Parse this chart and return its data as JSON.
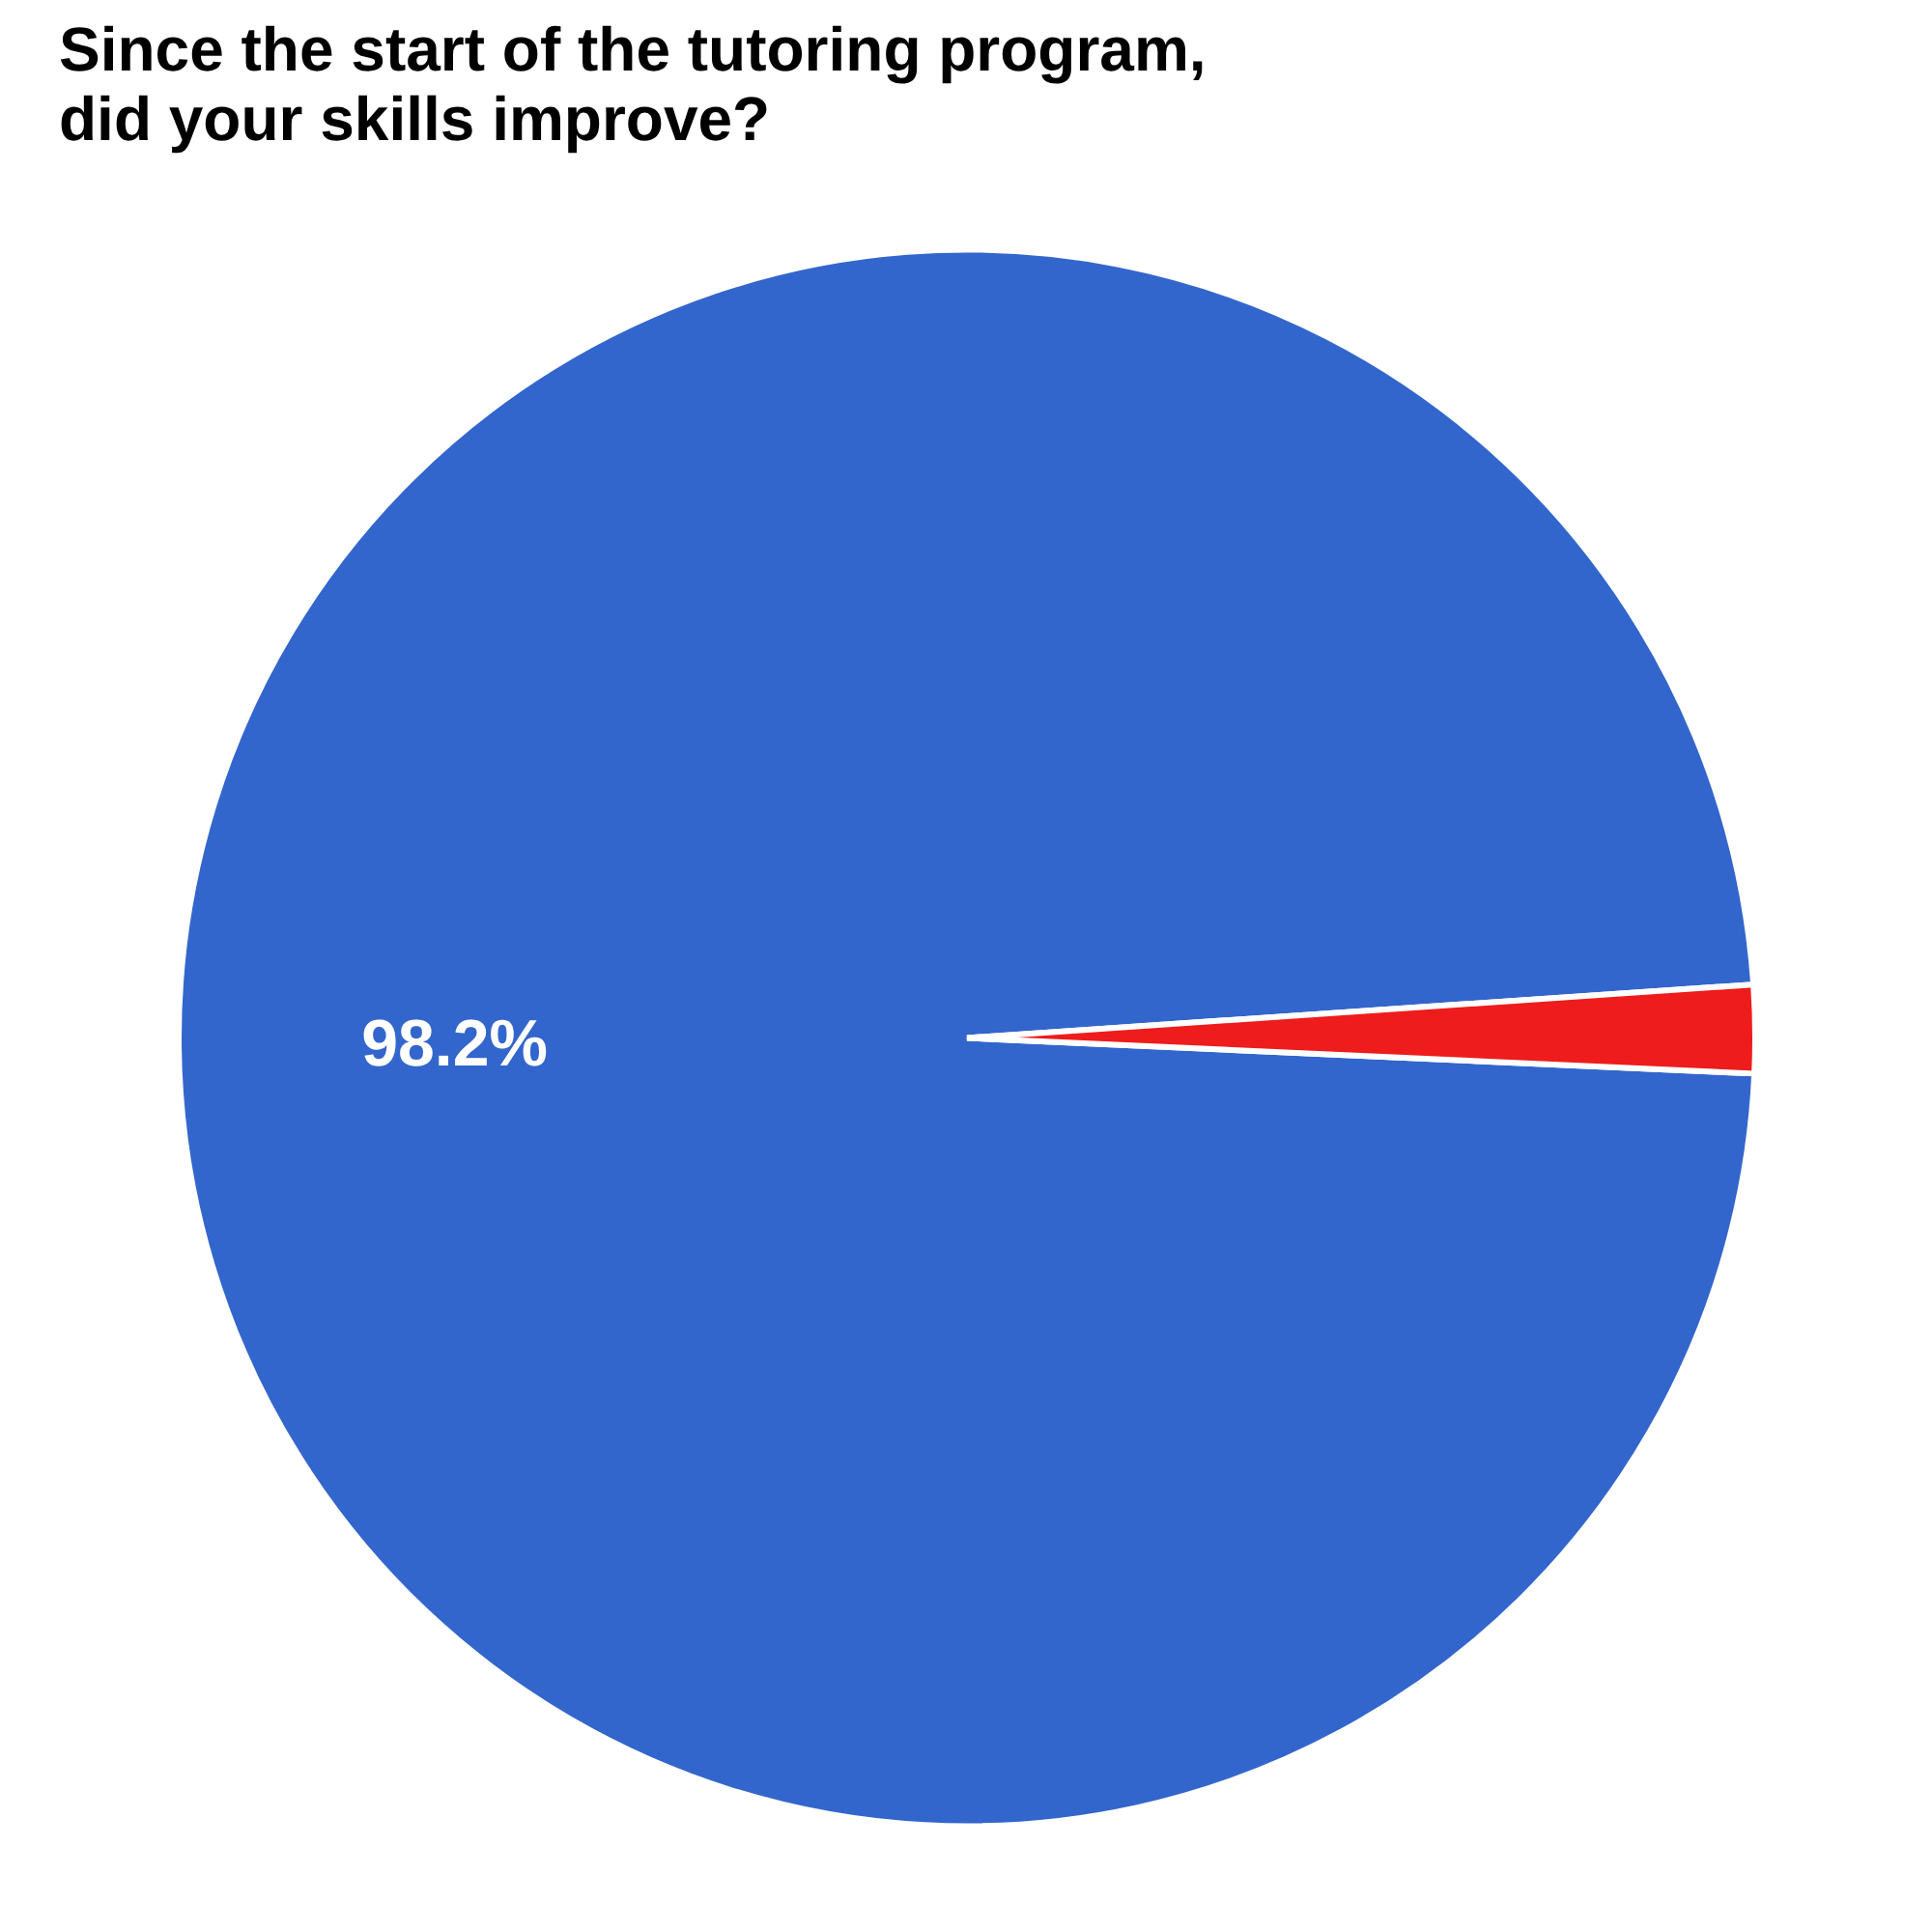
{
  "chart_data": {
    "type": "pie",
    "title": "Since the start of the tutoring program, did your skills improve?",
    "categories": [
      null,
      null
    ],
    "values": [
      98.2,
      1.8
    ],
    "colors": [
      "#3366cc",
      "#ee1c1c"
    ],
    "value_labels": [
      "98.2%",
      null
    ]
  }
}
